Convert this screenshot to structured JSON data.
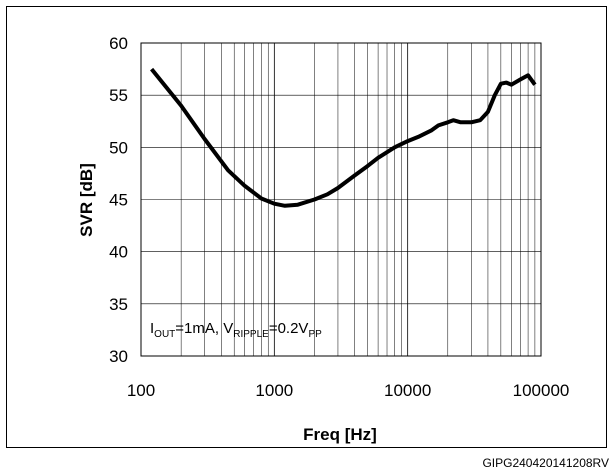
{
  "chart_data": {
    "type": "line",
    "xlabel": "Freq [Hz]",
    "ylabel": "SVR [dB]",
    "x_scale": "log",
    "xlim": [
      100,
      100000
    ],
    "ylim": [
      30,
      60
    ],
    "x_ticks": [
      "100",
      "1000",
      "10000",
      "100000"
    ],
    "y_ticks": [
      "30",
      "35",
      "40",
      "45",
      "50",
      "55",
      "60"
    ],
    "grid": true,
    "annotation": {
      "i_prefix": "I",
      "i_sub": "OUT",
      "i_value": "=1mA, ",
      "v_prefix": "V",
      "v_sub": "RIPPLE",
      "v_value": "=0.2V",
      "v_unit_sub": "PP"
    },
    "series": [
      {
        "x": [
          120,
          200,
          300,
          450,
          600,
          800,
          1000,
          1200,
          1500,
          2000,
          2500,
          3000,
          4000,
          5000,
          6000,
          8000,
          10000,
          12000,
          15000,
          17000,
          20000,
          22000,
          25000,
          30000,
          35000,
          40000,
          45000,
          50000,
          55000,
          60000,
          70000,
          80000,
          90000
        ],
        "y": [
          57.5,
          54.0,
          50.8,
          47.8,
          46.3,
          45.1,
          44.6,
          44.4,
          44.5,
          45.0,
          45.5,
          46.1,
          47.3,
          48.2,
          49.0,
          50.0,
          50.6,
          51.0,
          51.6,
          52.1,
          52.4,
          52.6,
          52.4,
          52.4,
          52.6,
          53.4,
          55.0,
          56.1,
          56.2,
          56.0,
          56.5,
          56.9,
          56.0
        ]
      }
    ]
  },
  "footer_code": "GIPG240420141208RV"
}
